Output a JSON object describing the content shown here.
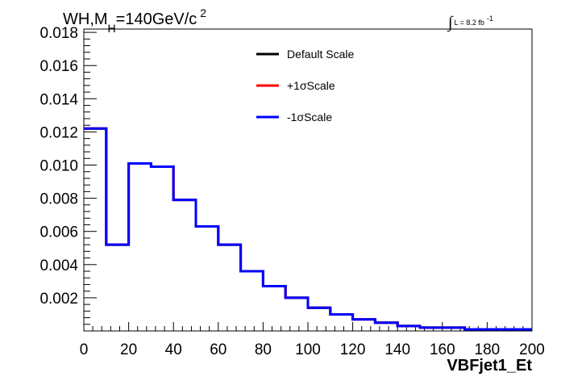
{
  "chart_data": {
    "type": "line",
    "title": {
      "prefix": "WH,M",
      "subscript": "H",
      "suffix": "=140GeV/c",
      "superscript": "2"
    },
    "luminosity": {
      "integral_symbol": "∫",
      "text": "L = 8.2 fb",
      "superscript": "-1"
    },
    "xlabel": "VBFjet1_Et",
    "ylabel": "",
    "xlim": [
      0,
      200
    ],
    "ylim": [
      0,
      0.0182
    ],
    "x_ticks": [
      "0",
      "20",
      "40",
      "60",
      "80",
      "100",
      "120",
      "140",
      "160",
      "180",
      "200"
    ],
    "y_ticks": [
      "0.002",
      "0.004",
      "0.006",
      "0.008",
      "0.010",
      "0.012",
      "0.014",
      "0.016",
      "0.018"
    ],
    "bin_edges": [
      0,
      10,
      20,
      30,
      40,
      50,
      60,
      70,
      80,
      90,
      100,
      110,
      120,
      130,
      140,
      150,
      160,
      170,
      180,
      190,
      200
    ],
    "series": [
      {
        "name": "Default Scale",
        "color": "#000000",
        "values": [
          0.0122,
          0.0052,
          0.0101,
          0.0099,
          0.0079,
          0.0063,
          0.0052,
          0.0036,
          0.0027,
          0.002,
          0.0014,
          0.001,
          0.0007,
          0.0005,
          0.0003,
          0.0002,
          0.0002,
          0.0001,
          0.0001,
          0.0001
        ]
      },
      {
        "name": "+1σScale",
        "color": "#ff0000",
        "values": [
          0.0122,
          0.0052,
          0.0101,
          0.0099,
          0.0079,
          0.0063,
          0.0052,
          0.0036,
          0.0027,
          0.002,
          0.0014,
          0.001,
          0.0007,
          0.0005,
          0.0003,
          0.0002,
          0.0002,
          0.0001,
          0.0001,
          0.0001
        ]
      },
      {
        "name": "-1σScale",
        "color": "#0000ff",
        "values": [
          0.0122,
          0.0052,
          0.0101,
          0.0099,
          0.0079,
          0.0063,
          0.0052,
          0.0036,
          0.0027,
          0.002,
          0.0014,
          0.001,
          0.0007,
          0.0005,
          0.0003,
          0.0002,
          0.0002,
          0.0001,
          0.0001,
          0.0001
        ]
      }
    ],
    "grid": false,
    "legend_position": "top-center"
  }
}
